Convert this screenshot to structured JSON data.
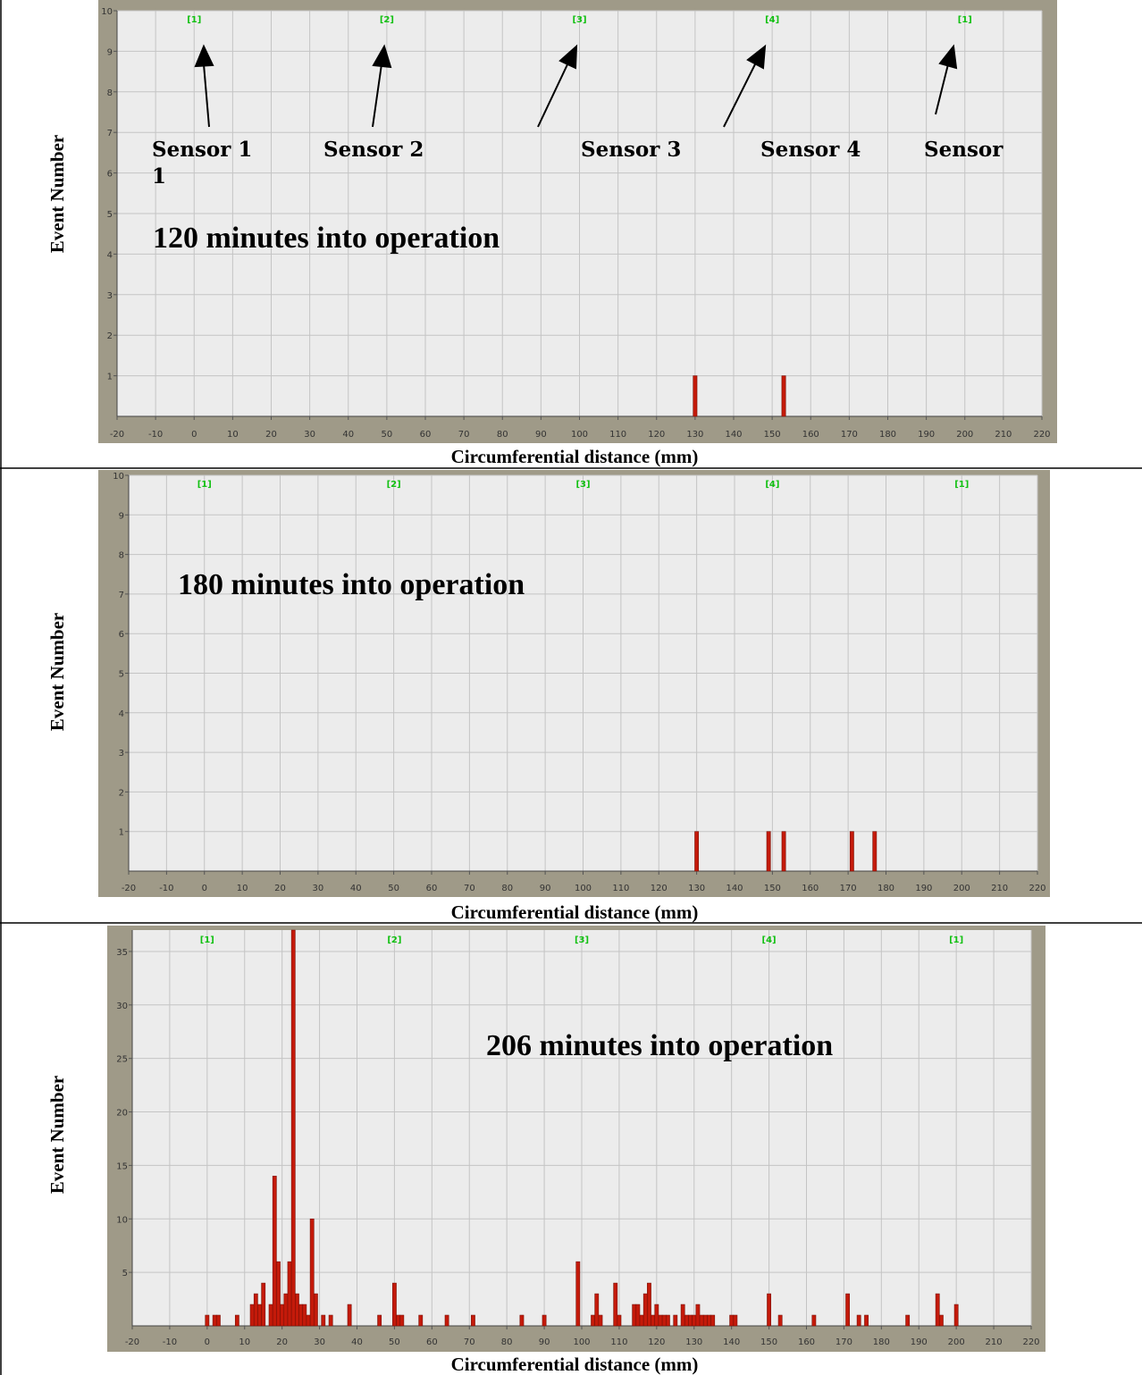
{
  "colors": {
    "bar": "#c41a0a",
    "bar_stroke": "#7a1006",
    "frame": "#9f9a88",
    "plot_bg": "#ececec",
    "grid": "#c4c4c4",
    "sensor_mark": "#11c011",
    "tick": "#333333"
  },
  "chart_data": [
    {
      "type": "bar",
      "xlabel": "Circumferential distance (mm)",
      "ylabel": "Event Number",
      "annotation": "120 minutes into operation",
      "xlim": [
        -20,
        220
      ],
      "ylim": [
        0,
        10
      ],
      "x_ticks": [
        -20,
        -10,
        0,
        10,
        20,
        30,
        40,
        50,
        60,
        70,
        80,
        90,
        100,
        110,
        120,
        130,
        140,
        150,
        160,
        170,
        180,
        190,
        200,
        210,
        220
      ],
      "y_ticks": [
        1,
        2,
        3,
        4,
        5,
        6,
        7,
        8,
        9,
        10
      ],
      "grid": true,
      "sensor_markers": [
        {
          "label": "[1]",
          "x": 0
        },
        {
          "label": "[2]",
          "x": 50
        },
        {
          "label": "[3]",
          "x": 100
        },
        {
          "label": "[4]",
          "x": 150
        },
        {
          "label": "[1]",
          "x": 200
        }
      ],
      "sensor_labels": [
        "Sensor 1",
        "1",
        "Sensor 2",
        "Sensor 3",
        "Sensor 4",
        "Sensor"
      ],
      "x": [
        130,
        153
      ],
      "values": [
        1,
        1
      ]
    },
    {
      "type": "bar",
      "xlabel": "Circumferential distance (mm)",
      "ylabel": "Event Number",
      "annotation": "180 minutes into operation",
      "xlim": [
        -20,
        220
      ],
      "ylim": [
        0,
        10
      ],
      "x_ticks": [
        -20,
        -10,
        0,
        10,
        20,
        30,
        40,
        50,
        60,
        70,
        80,
        90,
        100,
        110,
        120,
        130,
        140,
        150,
        160,
        170,
        180,
        190,
        200,
        210,
        220
      ],
      "y_ticks": [
        1,
        2,
        3,
        4,
        5,
        6,
        7,
        8,
        9,
        10
      ],
      "grid": true,
      "sensor_markers": [
        {
          "label": "[1]",
          "x": 0
        },
        {
          "label": "[2]",
          "x": 50
        },
        {
          "label": "[3]",
          "x": 100
        },
        {
          "label": "[4]",
          "x": 150
        },
        {
          "label": "[1]",
          "x": 200
        }
      ],
      "x": [
        130,
        149,
        153,
        171,
        177
      ],
      "values": [
        1,
        1,
        1,
        1,
        1
      ]
    },
    {
      "type": "bar",
      "xlabel": "Circumferential distance (mm)",
      "ylabel": "Event Number",
      "annotation": "206 minutes into operation",
      "xlim": [
        -20,
        220
      ],
      "ylim": [
        0,
        37
      ],
      "x_ticks": [
        -20,
        -10,
        0,
        10,
        20,
        30,
        40,
        50,
        60,
        70,
        80,
        90,
        100,
        110,
        120,
        130,
        140,
        150,
        160,
        170,
        180,
        190,
        200,
        210,
        220
      ],
      "y_ticks": [
        5,
        10,
        15,
        20,
        25,
        30,
        35
      ],
      "grid": true,
      "sensor_markers": [
        {
          "label": "[1]",
          "x": 0
        },
        {
          "label": "[2]",
          "x": 50
        },
        {
          "label": "[3]",
          "x": 100
        },
        {
          "label": "[4]",
          "x": 150
        },
        {
          "label": "[1]",
          "x": 200
        }
      ],
      "x": [
        0,
        2,
        3,
        8,
        12,
        13,
        14,
        15,
        17,
        18,
        19,
        20,
        21,
        22,
        23,
        24,
        25,
        26,
        27,
        28,
        29,
        31,
        33,
        38,
        46,
        50,
        51,
        52,
        57,
        64,
        71,
        84,
        90,
        99,
        103,
        104,
        105,
        109,
        110,
        114,
        115,
        116,
        117,
        118,
        119,
        120,
        121,
        122,
        123,
        125,
        127,
        128,
        129,
        130,
        131,
        132,
        133,
        134,
        135,
        140,
        141,
        150,
        153,
        162,
        171,
        174,
        176,
        187,
        195,
        196,
        200
      ],
      "values": [
        1,
        1,
        1,
        1,
        2,
        3,
        2,
        4,
        2,
        14,
        6,
        2,
        3,
        6,
        37,
        3,
        2,
        2,
        1,
        10,
        3,
        1,
        1,
        2,
        1,
        4,
        1,
        1,
        1,
        1,
        1,
        1,
        1,
        6,
        1,
        3,
        1,
        4,
        1,
        2,
        2,
        1,
        3,
        4,
        1,
        2,
        1,
        1,
        1,
        1,
        2,
        1,
        1,
        1,
        2,
        1,
        1,
        1,
        1,
        1,
        1,
        3,
        1,
        1,
        3,
        1,
        1,
        1,
        3,
        1,
        2
      ]
    }
  ]
}
